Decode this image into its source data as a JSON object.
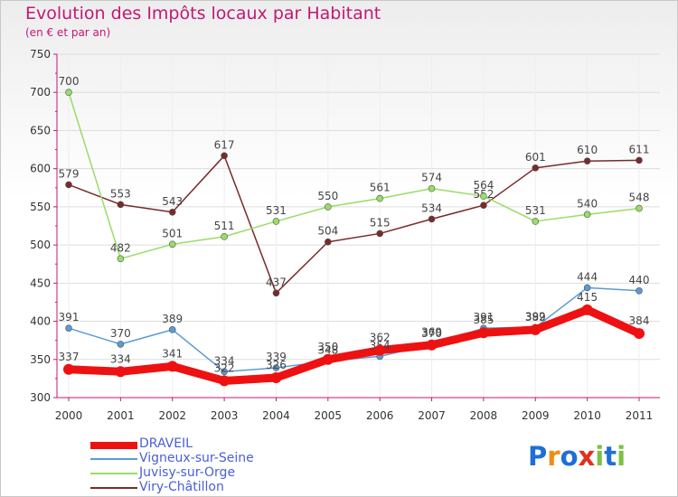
{
  "header": {
    "title": "Evolution des Impôts locaux par Habitant",
    "subtitle": "(en € et par an)"
  },
  "logo": {
    "text": "Proxiti",
    "letters": [
      "P",
      "r",
      "o",
      "x",
      "i",
      "t",
      "i"
    ],
    "colors": [
      "#1f6fd6",
      "#f08c1a",
      "#1f6fd6",
      "#e0301e",
      "#7bc142",
      "#1f6fd6",
      "#7bc142"
    ]
  },
  "chart_data": {
    "type": "line",
    "title": "Evolution des Impôts locaux par Habitant",
    "subtitle": "(en € et par an)",
    "xlabel": "",
    "ylabel": "",
    "categories": [
      "2000",
      "2001",
      "2002",
      "2003",
      "2004",
      "2005",
      "2006",
      "2007",
      "2008",
      "2009",
      "2010",
      "2011"
    ],
    "ylim": [
      300,
      750
    ],
    "yticks": [
      300,
      350,
      400,
      450,
      500,
      550,
      600,
      650,
      700,
      750
    ],
    "grid": true,
    "legend_position": "bottom-left",
    "series": [
      {
        "name": "DRAVEIL",
        "color": "#ee1111",
        "values": [
          337,
          334,
          341,
          322,
          326,
          350,
          362,
          369,
          385,
          389,
          415,
          384
        ],
        "labels": [
          "337",
          "334",
          "341",
          "322",
          "326",
          "350",
          "362",
          "369",
          "385",
          "389",
          "415",
          "384"
        ]
      },
      {
        "name": "Vigneux-sur-Seine",
        "color": "#5b9bd5",
        "values": [
          391,
          370,
          389,
          334,
          339,
          348,
          354,
          370,
          391,
          392,
          444,
          440
        ],
        "labels": [
          "391",
          "370",
          "389",
          "334",
          "339",
          "348",
          "354",
          "370",
          "391",
          "392",
          "444",
          "440"
        ]
      },
      {
        "name": "Juvisy-sur-Orge",
        "color": "#99dd66",
        "values": [
          700,
          482,
          501,
          511,
          531,
          550,
          561,
          574,
          564,
          531,
          540,
          548
        ],
        "labels": [
          "700",
          "482",
          "501",
          "511",
          "531",
          "550",
          "561",
          "574",
          "564",
          "531",
          "540",
          "548"
        ]
      },
      {
        "name": "Viry-Châtillon",
        "color": "#7a2a2a",
        "values": [
          579,
          553,
          543,
          617,
          437,
          504,
          515,
          534,
          552,
          601,
          610,
          611
        ],
        "labels": [
          "579",
          "553",
          "543",
          "617",
          "437",
          "504",
          "515",
          "534",
          "552",
          "601",
          "610",
          "611"
        ]
      }
    ]
  }
}
